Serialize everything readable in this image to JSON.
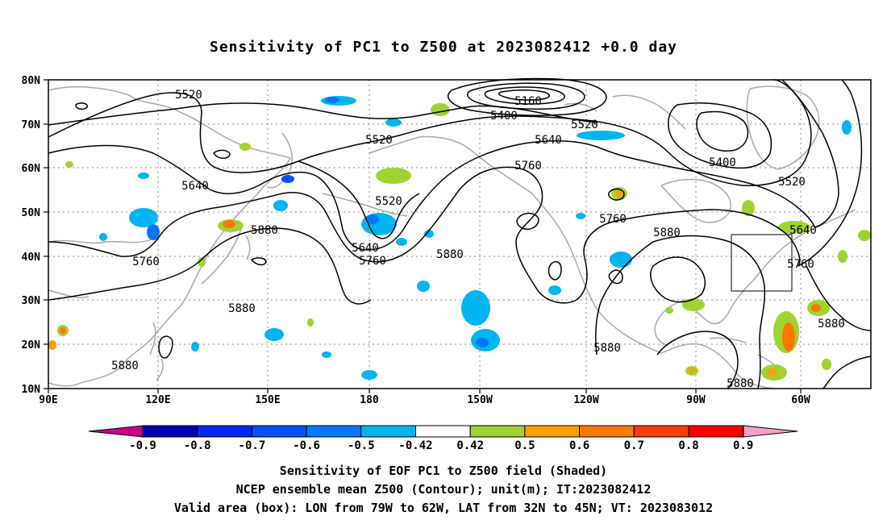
{
  "title": "Sensitivity of PC1 to Z500 at 2023082412 +0.0 day",
  "lat_labels": [
    "80N",
    "70N",
    "60N",
    "50N",
    "40N",
    "30N",
    "20N",
    "10N"
  ],
  "lon_labels": [
    "90E",
    "120E",
    "150E",
    "180",
    "150W",
    "120W",
    "90W",
    "60W"
  ],
  "contour_labels": [
    "5520",
    "5160",
    "5400",
    "5520",
    "5520",
    "5640",
    "5760",
    "5400",
    "5520",
    "5640",
    "5520",
    "5640",
    "5760",
    "5760",
    "5880",
    "5880",
    "5640",
    "5760",
    "5880",
    "5760",
    "5880",
    "5880",
    "5880",
    "5880",
    "5880"
  ],
  "colorbar": {
    "labels": [
      "-0.9",
      "-0.8",
      "-0.7",
      "-0.6",
      "-0.5",
      "-0.42",
      "0.42",
      "0.5",
      "0.6",
      "0.7",
      "0.8",
      "0.9"
    ],
    "colors": [
      "#0000b4",
      "#0028f0",
      "#0050ff",
      "#0078ff",
      "#00b4f0",
      "#00d2ff",
      "#ffffff",
      "#a0d232",
      "#ffa000",
      "#ff7800",
      "#ff3c00",
      "#ff0000"
    ],
    "low_end_color": "#c8008c",
    "high_end_color": "#f5a0c8"
  },
  "captions": [
    "Sensitivity of EOF PC1 to Z500 field (Shaded)",
    "NCEP ensemble mean Z500 (Contour); unit(m); IT:2023082412",
    "Valid area (box): LON from 79W to 62W, LAT from 32N to 45N; VT: 2023083012"
  ],
  "colors": {
    "contour": "#000000",
    "coastline": "#a8a8a8",
    "grid": "#8a8a8a",
    "box": "#000000"
  }
}
